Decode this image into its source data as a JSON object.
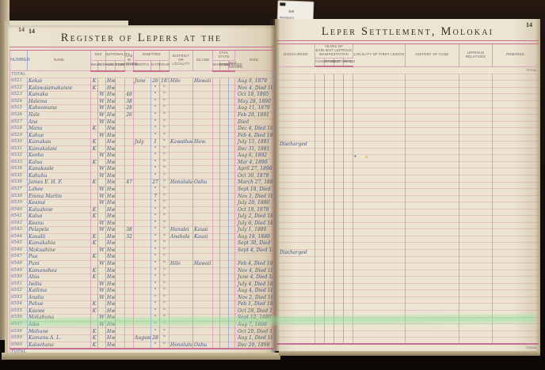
{
  "photo": {
    "tab": {
      "code": "308",
      "line1": "WARDEN'S",
      "line2": "RECORDS"
    },
    "colors": {
      "paper": "#e9e1cd",
      "backdrop": "#140e09",
      "rule_pink": "#c76f93",
      "rule_blue": "#a7aed6",
      "ink": "#46527a",
      "highlight_green": "#8ae298"
    }
  },
  "left_page": {
    "page_number": "14",
    "under_page_number": "14",
    "title": "Register of Lepers at the",
    "total_label": "Total",
    "columns": {
      "number": "Number",
      "name": "Name",
      "sex": "Sex",
      "male": "Male",
      "female": "Female",
      "nationality": "Nationality",
      "hawaiian": "Hawaiian",
      "foreigner": "Foreigner",
      "age": "Age in Years",
      "admitted": "Admitted",
      "adm_month": "Month",
      "adm_date": "Date",
      "adm_year": "Year",
      "locality": "District or Locality",
      "island": "Island",
      "civil_state": "Civil State",
      "married": "Married",
      "unmarried": "Unmarried",
      "unknown": "Not Known",
      "died": "Died"
    },
    "rows": [
      [
        "6521",
        "Kekai",
        "K",
        "",
        "Hw",
        "",
        "",
        "June",
        "26",
        "1879",
        "Hilo",
        "Hawaii",
        "",
        "",
        "",
        "Aug 9, 1879"
      ],
      [
        "6522",
        "Kalawaiamakanoe",
        "K",
        "",
        "Hw",
        "",
        "",
        "",
        "\"",
        "\"",
        "",
        "",
        "",
        "",
        "",
        "Nov 4, Died 1880"
      ],
      [
        "6523",
        "Kamaka",
        "",
        "W",
        "Hw",
        "",
        "48",
        "",
        "\"",
        "\"",
        "",
        "",
        "",
        "",
        "",
        "Oct 18, 1895"
      ],
      [
        "6524",
        "Halema",
        "",
        "W",
        "Hw",
        "",
        "38",
        "",
        "\"",
        "\"",
        "",
        "",
        "",
        "",
        "",
        "May 28, 1890"
      ],
      [
        "6525",
        "Kahoomana",
        "",
        "W",
        "Hw",
        "",
        "28",
        "",
        "\"",
        "\"",
        "",
        "",
        "",
        "",
        "",
        "Aug 11, 1879"
      ],
      [
        "6526",
        "Hale",
        "",
        "W",
        "Hw",
        "",
        "26",
        "",
        "\"",
        "\"",
        "",
        "",
        "",
        "",
        "",
        "Feb 28, 1891"
      ],
      [
        "6527",
        "Ane",
        "",
        "W",
        "Hw",
        "",
        "",
        "",
        "\"",
        "\"",
        "",
        "",
        "",
        "",
        "",
        "Died"
      ],
      [
        "6528",
        "Manu",
        "K",
        "",
        "Hw",
        "",
        "",
        "",
        "\"",
        "\"",
        "",
        "",
        "",
        "",
        "",
        "Dec 4, Died 1880"
      ],
      [
        "6529",
        "Kahue",
        "",
        "W",
        "Hw",
        "",
        "",
        "",
        "\"",
        "\"",
        "",
        "",
        "",
        "",
        "",
        "Feb 4, Died 1880"
      ],
      [
        "6530",
        "Kamakau",
        "K",
        "",
        "Hw",
        "",
        "",
        "July",
        "1",
        "\"",
        "Kawaihae",
        "Haw.",
        "",
        "",
        "",
        "July 15, 1891"
      ],
      [
        "6531",
        "Kamakalani",
        "K",
        "",
        "Hw",
        "",
        "",
        "",
        "\"",
        "\"",
        "",
        "",
        "",
        "",
        "",
        "Dec 31, 1881"
      ],
      [
        "6532",
        "Keoho",
        "",
        "W",
        "Hw",
        "",
        "",
        "",
        "\"",
        "\"",
        "",
        "",
        "",
        "",
        "",
        "Aug 6, 1892"
      ],
      [
        "6533",
        "Kalua",
        "K",
        "",
        "Hw",
        "",
        "",
        "",
        "\"",
        "\"",
        "",
        "",
        "",
        "",
        "",
        "Mar 4, 1896"
      ],
      [
        "6534",
        "Kanakaole",
        "",
        "W",
        "Hw",
        "",
        "",
        "",
        "\"",
        "\"",
        "",
        "",
        "",
        "",
        "",
        "April 27, 1896"
      ],
      [
        "6535",
        "Kahuhu",
        "",
        "W",
        "Hw",
        "",
        "",
        "",
        "\"",
        "\"",
        "",
        "",
        "",
        "",
        "",
        "Oct 30, 1879"
      ],
      [
        "6536",
        "James E. H. F.",
        "K",
        "",
        "Hw",
        "",
        "47",
        "",
        "27",
        "\"",
        "Honolulu",
        "Oahu",
        "",
        "",
        "",
        "March 27, 1880"
      ],
      [
        "6537",
        "Lahee",
        "",
        "W",
        "Hw",
        "",
        "",
        "",
        "\"",
        "\"",
        "",
        "",
        "",
        "",
        "",
        "Sept 18, Died 1881"
      ],
      [
        "6538",
        "Emma Martin",
        "",
        "W",
        "Hw",
        "",
        "",
        "",
        "7",
        "\"",
        "",
        "",
        "",
        "",
        "",
        "Nov 1, Died 1880"
      ],
      [
        "6539",
        "Keanui",
        "",
        "W",
        "Hw",
        "",
        "",
        "",
        "\"",
        "\"",
        "",
        "",
        "",
        "",
        "",
        "July 20, 1880"
      ],
      [
        "6540",
        "Kaluahine",
        "K",
        "",
        "Hw",
        "",
        "",
        "",
        "\"",
        "\"",
        "",
        "",
        "",
        "",
        "",
        "Oct 19, 1879"
      ],
      [
        "6541",
        "Kalua",
        "K",
        "",
        "Hw",
        "",
        "",
        "",
        "\"",
        "\"",
        "",
        "",
        "",
        "",
        "",
        "July 2, Died 1880"
      ],
      [
        "6542",
        "Keanu",
        "",
        "W",
        "Hw",
        "",
        "",
        "",
        "\"",
        "\"",
        "",
        "",
        "",
        "",
        "",
        "July 6, Died 1881"
      ],
      [
        "6543",
        "Pelapela",
        "",
        "W",
        "Hw",
        "",
        "38",
        "",
        "\"",
        "\"",
        "Hanalei",
        "Kauai",
        "",
        "",
        "",
        "July 1, 1880"
      ],
      [
        "6544",
        "Kaualii",
        "K",
        "",
        "Hw",
        "",
        "32",
        "",
        "\"",
        "\"",
        "Anahola",
        "Kauai",
        "",
        "",
        "",
        "Aug 19, 1880"
      ],
      [
        "6545",
        "Kamakahia",
        "K",
        "",
        "Hw",
        "",
        "",
        "",
        "\"",
        "\"",
        "",
        "",
        "",
        "",
        "",
        "Sept 30, Died 1880"
      ],
      [
        "6546",
        "Mokuahine",
        "",
        "W",
        "Hw",
        "",
        "",
        "",
        "\"",
        "\"",
        "",
        "",
        "",
        "",
        "",
        "Sept 4, Died 1880"
      ],
      [
        "6547",
        "Pua",
        "K",
        "",
        "Hw",
        "",
        "",
        "",
        "\"",
        "\"",
        "",
        "",
        "",
        "",
        "",
        ""
      ],
      [
        "6548",
        "Puni",
        "",
        "W",
        "Hw",
        "",
        "",
        "",
        "\"",
        "\"",
        "Hilo",
        "Hawaii",
        "",
        "",
        "",
        "Feb 4, Died 1880"
      ],
      [
        "6549",
        "Kamanohea",
        "K",
        "",
        "Hw",
        "",
        "",
        "",
        "\"",
        "\"",
        "",
        "",
        "",
        "",
        "",
        "Nov 4, Died 1881"
      ],
      [
        "6550",
        "Ahia",
        "K",
        "",
        "Hw",
        "",
        "",
        "",
        "\"",
        "\"",
        "",
        "",
        "",
        "",
        "",
        "June 4, Died 1880"
      ],
      [
        "6551",
        "Iwilia",
        "",
        "W",
        "Hw",
        "",
        "",
        "",
        "\"",
        "\"",
        "",
        "",
        "",
        "",
        "",
        "July 4, Died 1881"
      ],
      [
        "6552",
        "Kailima",
        "",
        "W",
        "Hw",
        "",
        "",
        "",
        "\"",
        "\"",
        "",
        "",
        "",
        "",
        "",
        "Aug 4, Died 1880"
      ],
      [
        "6553",
        "Analia",
        "",
        "W",
        "Hw",
        "",
        "",
        "",
        "\"",
        "\"",
        "",
        "",
        "",
        "",
        "",
        "Nov 2, Died 1881"
      ],
      [
        "6554",
        "Pohue",
        "K",
        "",
        "Hw",
        "",
        "",
        "",
        "\"",
        "\"",
        "",
        "",
        "",
        "",
        "",
        "Feb 1, Died 1880"
      ],
      [
        "6555",
        "Kauwe",
        "K",
        "",
        "Hw",
        "",
        "",
        "",
        "\"",
        "\"",
        "",
        "",
        "",
        "",
        "",
        "Oct 28, Died 1881"
      ],
      [
        "6556",
        "Makahuna",
        "",
        "W",
        "Hw",
        "",
        "",
        "",
        "\"",
        "\"",
        "",
        "",
        "",
        "",
        "",
        "Sept 12, 1880"
      ],
      [
        "6557",
        "Aika",
        "",
        "W",
        "Hw",
        "",
        "",
        "",
        "\"",
        "\"",
        "",
        "",
        "",
        "",
        "",
        "Aug 7, 1898"
      ],
      [
        "6558",
        "Mahune",
        "K",
        "",
        "Hw",
        "",
        "",
        "",
        "\"",
        "\"",
        "",
        "",
        "",
        "",
        "",
        "Oct 20, Died 1879"
      ],
      [
        "6559",
        "Kamanu A. L.",
        "K",
        "",
        "Hw",
        "",
        "",
        "August",
        "28",
        "\"",
        "",
        "",
        "",
        "",
        "",
        "Aug 1, Died 1880"
      ],
      [
        "6560",
        "Kalaehana",
        "K",
        "",
        "Hw",
        "",
        "",
        "",
        "\"",
        "\"",
        "Honolulu",
        "Oahu",
        "",
        "",
        "",
        "Dec 20, 1898"
      ]
    ]
  },
  "right_page": {
    "page_number": "14",
    "title": "Leper Settlement, Molokai",
    "total_label": "Total",
    "columns": {
      "discharged": "Discharged",
      "years_group": "Years of Earliest Leprous Manifestation",
      "asserted": "Asserted",
      "marked": "Marked",
      "estimated": "Estimated",
      "real": "Real",
      "first_lesion": "Locality of First Lesion",
      "history": "History of Case",
      "relatives": "Leprous Relatives",
      "remarks": "Remarks"
    },
    "rows": [
      [],
      [],
      [],
      [],
      [],
      [],
      [],
      [],
      [],
      [],
      [
        "Discharged"
      ],
      [],
      [
        "",
        "",
        "",
        "",
        "",
        "*"
      ],
      [],
      [],
      [],
      [],
      [],
      [],
      [],
      [],
      [],
      [],
      [],
      [],
      [],
      [
        "Discharged"
      ],
      [],
      [],
      [],
      [],
      [],
      [],
      [],
      [],
      [],
      [],
      [],
      [],
      []
    ]
  }
}
